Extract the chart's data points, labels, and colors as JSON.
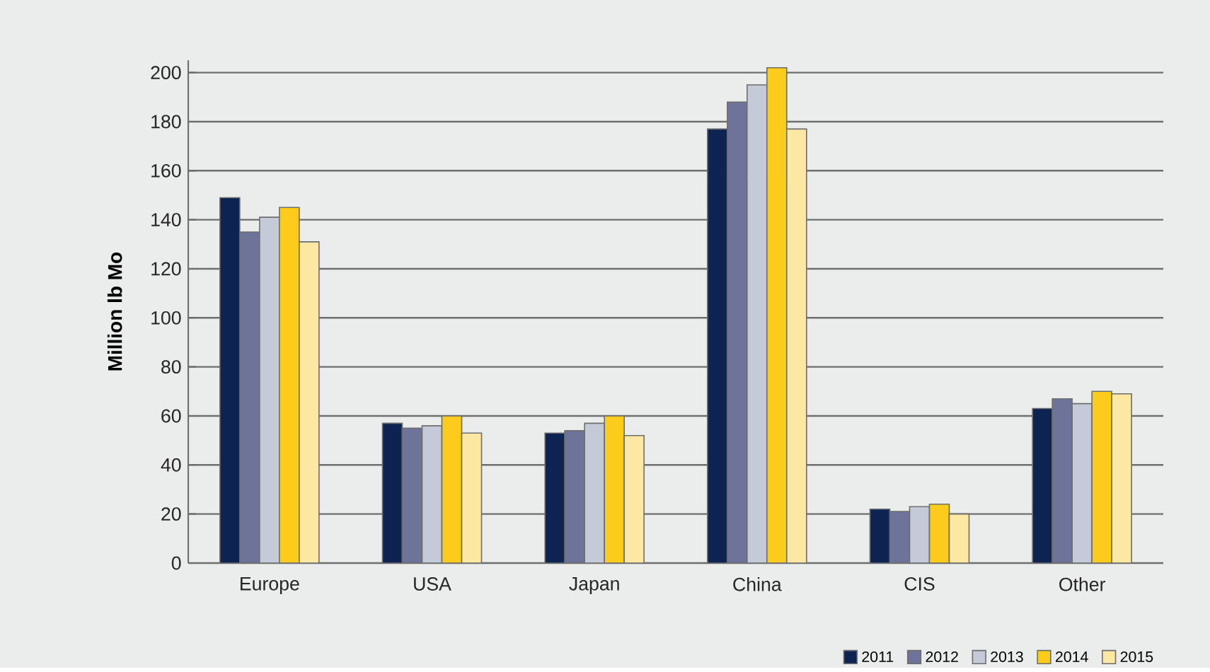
{
  "chart_data": {
    "type": "bar",
    "ylabel": "Million lb Mo",
    "categories": [
      "Europe",
      "USA",
      "Japan",
      "China",
      "CIS",
      "Other"
    ],
    "series": [
      {
        "name": "2011",
        "color": "#0d2452",
        "values": [
          149,
          57,
          53,
          177,
          22,
          63
        ]
      },
      {
        "name": "2012",
        "color": "#6e7399",
        "values": [
          135,
          55,
          54,
          188,
          21,
          67
        ]
      },
      {
        "name": "2013",
        "color": "#c5cad9",
        "values": [
          141,
          56,
          57,
          195,
          23,
          65
        ]
      },
      {
        "name": "2014",
        "color": "#fccb1c",
        "values": [
          145,
          60,
          60,
          202,
          24,
          70
        ]
      },
      {
        "name": "2015",
        "color": "#fce7a3",
        "values": [
          131,
          53,
          52,
          177,
          20,
          69
        ]
      }
    ],
    "ylim": [
      0,
      205
    ],
    "yticks": [
      0,
      20,
      40,
      60,
      80,
      100,
      120,
      140,
      160,
      180,
      200
    ],
    "grid": "y",
    "legend": "bottom right"
  }
}
